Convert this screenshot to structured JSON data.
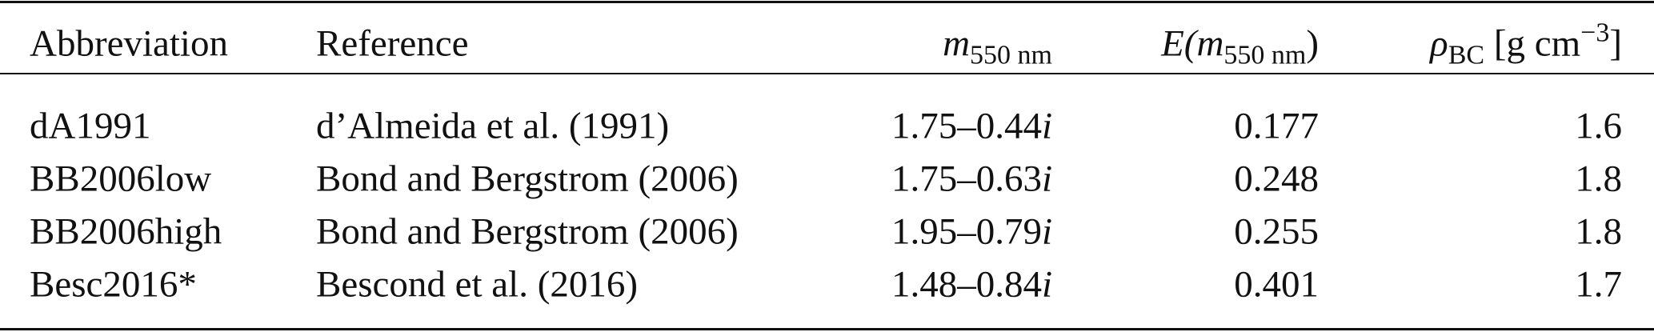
{
  "table": {
    "columns": [
      {
        "text": "Abbreviation"
      },
      {
        "text": "Reference"
      },
      {
        "symbol": "m",
        "subscript": "550 nm"
      },
      {
        "prefix": "E(",
        "symbol": "m",
        "subscript": "550 nm",
        "suffix": ")"
      },
      {
        "symbol": "ρ",
        "subscript": "BC",
        "unit": "[g cm",
        "superscript": "−3",
        "unit_end": "]"
      }
    ],
    "rows": [
      {
        "abbreviation": "dA1991",
        "reference": "d’Almeida et al. (1991)",
        "m_real": "1.75–0.44",
        "m_imag": "i",
        "E": 0.177,
        "rho": 1.6
      },
      {
        "abbreviation": "BB2006low",
        "reference": "Bond and Bergstrom (2006)",
        "m_real": "1.75–0.63",
        "m_imag": "i",
        "E": 0.248,
        "rho": 1.8
      },
      {
        "abbreviation": "BB2006high",
        "reference": "Bond and Bergstrom (2006)",
        "m_real": "1.95–0.79",
        "m_imag": "i",
        "E": 0.255,
        "rho": 1.8
      },
      {
        "abbreviation": "Besc2016*",
        "reference": "Bescond et al. (2016)",
        "m_real": "1.48–0.84",
        "m_imag": "i",
        "E": 0.401,
        "rho": 1.7
      }
    ]
  }
}
